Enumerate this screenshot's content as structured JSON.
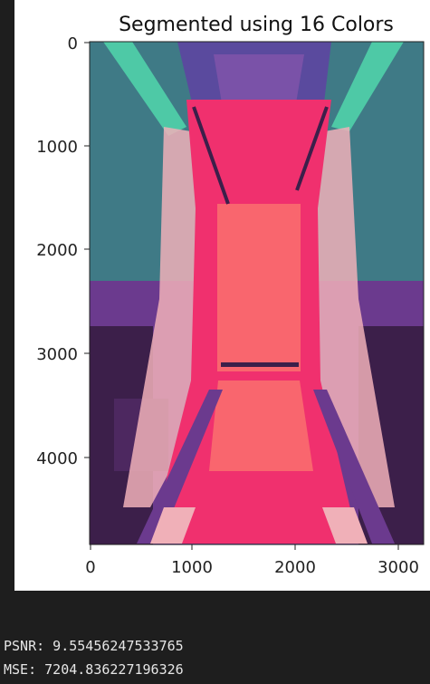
{
  "figure": {
    "title": "Segmented using 16 Colors",
    "x_ticks": [
      "0",
      "1000",
      "2000",
      "3000"
    ],
    "y_ticks": [
      "0",
      "1000",
      "2000",
      "3000",
      "4000"
    ]
  },
  "console": {
    "psnr_line": "PSNR: 9.55456247533765",
    "mse_line": "MSE: 7204.836227196326"
  },
  "colors": {
    "background": "#1e1e1e",
    "teal": "#3f7a86",
    "mint": "#4ec9a6",
    "pink": "#f0306e",
    "salmon": "#f9666e",
    "purple": "#6b3a8e",
    "dark_purple": "#3c1f4a",
    "light_pink": "#f0b0b8"
  }
}
